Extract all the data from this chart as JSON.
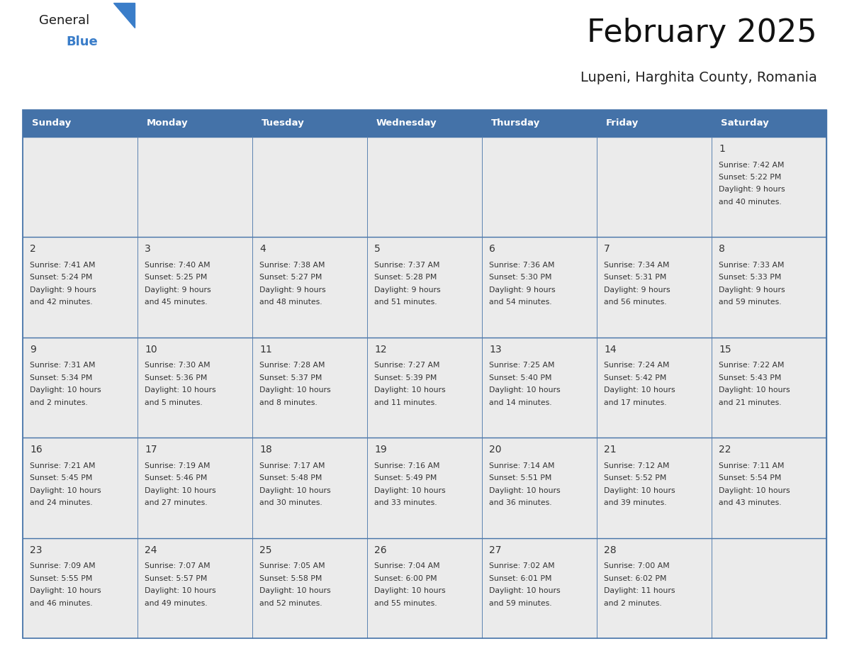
{
  "title": "February 2025",
  "subtitle": "Lupeni, Harghita County, Romania",
  "header_bg": "#4472a8",
  "header_text_color": "#ffffff",
  "cell_bg": "#ebebeb",
  "border_color": "#4472a8",
  "text_color": "#333333",
  "day_number_color": "#333333",
  "days_of_week": [
    "Sunday",
    "Monday",
    "Tuesday",
    "Wednesday",
    "Thursday",
    "Friday",
    "Saturday"
  ],
  "logo_text_color": "#1a1a1a",
  "logo_blue_color": "#3a7dc9",
  "calendar": [
    [
      null,
      null,
      null,
      null,
      null,
      null,
      {
        "day": 1,
        "sunrise": "7:42 AM",
        "sunset": "5:22 PM",
        "daylight": "9 hours",
        "daylight2": "and 40 minutes."
      }
    ],
    [
      {
        "day": 2,
        "sunrise": "7:41 AM",
        "sunset": "5:24 PM",
        "daylight": "9 hours",
        "daylight2": "and 42 minutes."
      },
      {
        "day": 3,
        "sunrise": "7:40 AM",
        "sunset": "5:25 PM",
        "daylight": "9 hours",
        "daylight2": "and 45 minutes."
      },
      {
        "day": 4,
        "sunrise": "7:38 AM",
        "sunset": "5:27 PM",
        "daylight": "9 hours",
        "daylight2": "and 48 minutes."
      },
      {
        "day": 5,
        "sunrise": "7:37 AM",
        "sunset": "5:28 PM",
        "daylight": "9 hours",
        "daylight2": "and 51 minutes."
      },
      {
        "day": 6,
        "sunrise": "7:36 AM",
        "sunset": "5:30 PM",
        "daylight": "9 hours",
        "daylight2": "and 54 minutes."
      },
      {
        "day": 7,
        "sunrise": "7:34 AM",
        "sunset": "5:31 PM",
        "daylight": "9 hours",
        "daylight2": "and 56 minutes."
      },
      {
        "day": 8,
        "sunrise": "7:33 AM",
        "sunset": "5:33 PM",
        "daylight": "9 hours",
        "daylight2": "and 59 minutes."
      }
    ],
    [
      {
        "day": 9,
        "sunrise": "7:31 AM",
        "sunset": "5:34 PM",
        "daylight": "10 hours",
        "daylight2": "and 2 minutes."
      },
      {
        "day": 10,
        "sunrise": "7:30 AM",
        "sunset": "5:36 PM",
        "daylight": "10 hours",
        "daylight2": "and 5 minutes."
      },
      {
        "day": 11,
        "sunrise": "7:28 AM",
        "sunset": "5:37 PM",
        "daylight": "10 hours",
        "daylight2": "and 8 minutes."
      },
      {
        "day": 12,
        "sunrise": "7:27 AM",
        "sunset": "5:39 PM",
        "daylight": "10 hours",
        "daylight2": "and 11 minutes."
      },
      {
        "day": 13,
        "sunrise": "7:25 AM",
        "sunset": "5:40 PM",
        "daylight": "10 hours",
        "daylight2": "and 14 minutes."
      },
      {
        "day": 14,
        "sunrise": "7:24 AM",
        "sunset": "5:42 PM",
        "daylight": "10 hours",
        "daylight2": "and 17 minutes."
      },
      {
        "day": 15,
        "sunrise": "7:22 AM",
        "sunset": "5:43 PM",
        "daylight": "10 hours",
        "daylight2": "and 21 minutes."
      }
    ],
    [
      {
        "day": 16,
        "sunrise": "7:21 AM",
        "sunset": "5:45 PM",
        "daylight": "10 hours",
        "daylight2": "and 24 minutes."
      },
      {
        "day": 17,
        "sunrise": "7:19 AM",
        "sunset": "5:46 PM",
        "daylight": "10 hours",
        "daylight2": "and 27 minutes."
      },
      {
        "day": 18,
        "sunrise": "7:17 AM",
        "sunset": "5:48 PM",
        "daylight": "10 hours",
        "daylight2": "and 30 minutes."
      },
      {
        "day": 19,
        "sunrise": "7:16 AM",
        "sunset": "5:49 PM",
        "daylight": "10 hours",
        "daylight2": "and 33 minutes."
      },
      {
        "day": 20,
        "sunrise": "7:14 AM",
        "sunset": "5:51 PM",
        "daylight": "10 hours",
        "daylight2": "and 36 minutes."
      },
      {
        "day": 21,
        "sunrise": "7:12 AM",
        "sunset": "5:52 PM",
        "daylight": "10 hours",
        "daylight2": "and 39 minutes."
      },
      {
        "day": 22,
        "sunrise": "7:11 AM",
        "sunset": "5:54 PM",
        "daylight": "10 hours",
        "daylight2": "and 43 minutes."
      }
    ],
    [
      {
        "day": 23,
        "sunrise": "7:09 AM",
        "sunset": "5:55 PM",
        "daylight": "10 hours",
        "daylight2": "and 46 minutes."
      },
      {
        "day": 24,
        "sunrise": "7:07 AM",
        "sunset": "5:57 PM",
        "daylight": "10 hours",
        "daylight2": "and 49 minutes."
      },
      {
        "day": 25,
        "sunrise": "7:05 AM",
        "sunset": "5:58 PM",
        "daylight": "10 hours",
        "daylight2": "and 52 minutes."
      },
      {
        "day": 26,
        "sunrise": "7:04 AM",
        "sunset": "6:00 PM",
        "daylight": "10 hours",
        "daylight2": "and 55 minutes."
      },
      {
        "day": 27,
        "sunrise": "7:02 AM",
        "sunset": "6:01 PM",
        "daylight": "10 hours",
        "daylight2": "and 59 minutes."
      },
      {
        "day": 28,
        "sunrise": "7:00 AM",
        "sunset": "6:02 PM",
        "daylight": "11 hours",
        "daylight2": "and 2 minutes."
      },
      null
    ]
  ]
}
